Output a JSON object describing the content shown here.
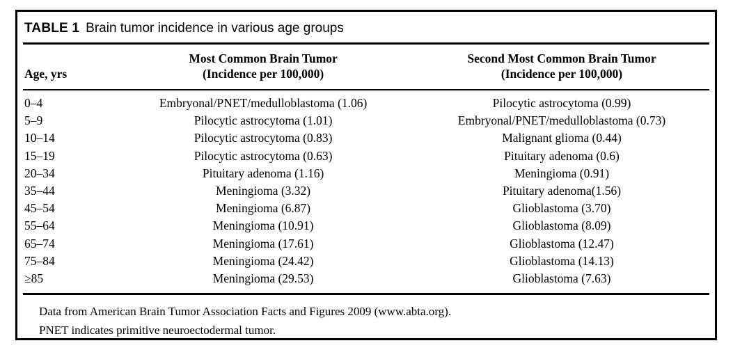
{
  "colors": {
    "text": "#000000",
    "background": "#ffffff",
    "border": "#000000"
  },
  "figure": {
    "title": {
      "label": "TABLE 1",
      "caption": "Brain tumor incidence in various age groups"
    },
    "table": {
      "columns": [
        {
          "header_line1": "",
          "header_line2": "Age, yrs"
        },
        {
          "header_line1": "Most Common Brain Tumor",
          "header_line2": "(Incidence per 100,000)"
        },
        {
          "header_line1": "Second Most Common Brain Tumor",
          "header_line2": "(Incidence per 100,000)"
        }
      ],
      "rows": [
        {
          "age": "0–4",
          "most_common": "Embryonal/PNET/medulloblastoma (1.06)",
          "second_most_common": "Pilocytic astrocytoma (0.99)"
        },
        {
          "age": "5–9",
          "most_common": "Pilocytic astrocytoma (1.01)",
          "second_most_common": "Embryonal/PNET/medulloblastoma (0.73)"
        },
        {
          "age": "10–14",
          "most_common": "Pilocytic astrocytoma (0.83)",
          "second_most_common": "Malignant glioma (0.44)"
        },
        {
          "age": "15–19",
          "most_common": "Pilocytic astrocytoma (0.63)",
          "second_most_common": "Pituitary adenoma (0.6)"
        },
        {
          "age": "20–34",
          "most_common": "Pituitary adenoma (1.16)",
          "second_most_common": "Meningioma (0.91)"
        },
        {
          "age": "35–44",
          "most_common": "Meningioma (3.32)",
          "second_most_common": "Pituitary adenoma(1.56)"
        },
        {
          "age": "45–54",
          "most_common": "Meningioma (6.87)",
          "second_most_common": "Glioblastoma (3.70)"
        },
        {
          "age": "55–64",
          "most_common": "Meningioma (10.91)",
          "second_most_common": "Glioblastoma (8.09)"
        },
        {
          "age": "65–74",
          "most_common": "Meningioma (17.61)",
          "second_most_common": "Glioblastoma (12.47)"
        },
        {
          "age": "75–84",
          "most_common": "Meningioma (24.42)",
          "second_most_common": "Glioblastoma (14.13)"
        },
        {
          "age": "≥85",
          "most_common": "Meningioma (29.53)",
          "second_most_common": "Glioblastoma (7.63)"
        }
      ]
    },
    "footnotes": [
      "Data from American Brain Tumor Association Facts and Figures 2009 (www.abta.org).",
      "PNET indicates primitive neuroectodermal tumor."
    ]
  }
}
